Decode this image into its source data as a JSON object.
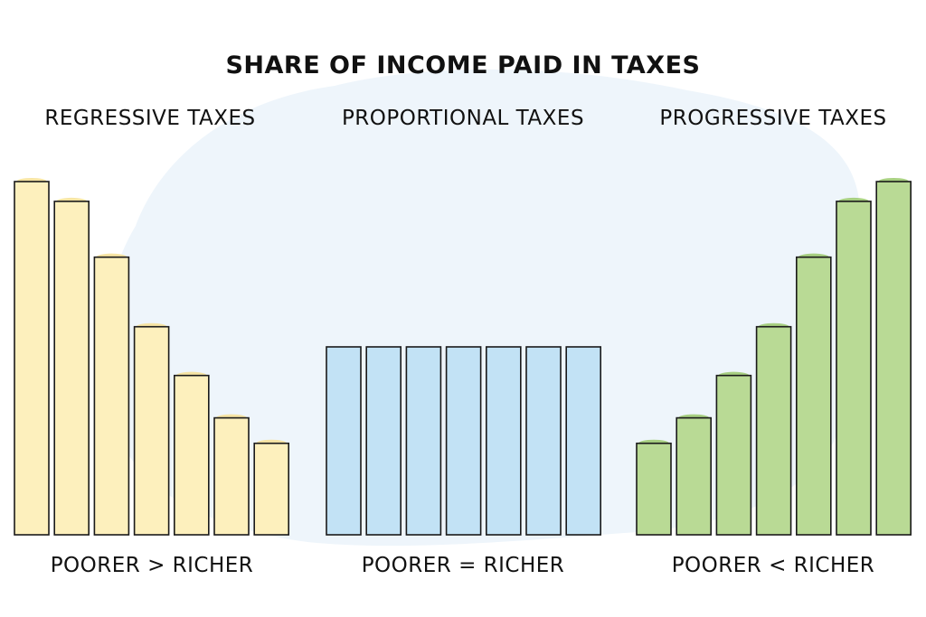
{
  "title": "SHARE OF INCOME PAID IN TAXES",
  "colors": {
    "regressive": "#fdf0bd",
    "proportional": "#c2e2f5",
    "progressive": "#b9da95",
    "background_blob": "#eef5fb",
    "regressive_cap": "#f6e29a",
    "progressive_cap": "#9fcb73"
  },
  "chart_data": [
    {
      "type": "bar",
      "title": "REGRESSIVE TAXES",
      "caption": "POORER > RICHER",
      "categories": [
        "",
        "",
        "",
        "",
        "",
        "",
        ""
      ],
      "values": [
        100,
        94.4,
        78.6,
        58.9,
        45.1,
        33.1,
        25.9
      ],
      "ylim": [
        0,
        100
      ],
      "grid": false
    },
    {
      "type": "bar",
      "title": "PROPORTIONAL TAXES",
      "caption": "POORER = RICHER",
      "categories": [
        "",
        "",
        "",
        "",
        "",
        "",
        ""
      ],
      "values": [
        53.2,
        53.2,
        53.2,
        53.2,
        53.2,
        53.2,
        53.2
      ],
      "ylim": [
        0,
        100
      ],
      "grid": false
    },
    {
      "type": "bar",
      "title": "PROGRESSIVE TAXES",
      "caption": "POORER < RICHER",
      "categories": [
        "",
        "",
        "",
        "",
        "",
        "",
        ""
      ],
      "values": [
        25.9,
        33.1,
        45.1,
        58.9,
        78.6,
        94.4,
        100
      ],
      "ylim": [
        0,
        100
      ],
      "grid": false
    }
  ]
}
